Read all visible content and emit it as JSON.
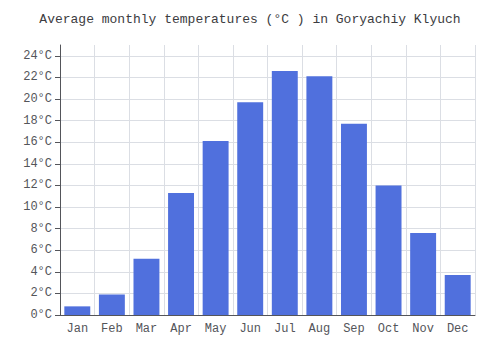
{
  "chart_data": {
    "type": "bar",
    "title": "Average monthly temperatures (°C ) in Goryachiy Klyuch",
    "categories": [
      "Jan",
      "Feb",
      "Mar",
      "Apr",
      "May",
      "Jun",
      "Jul",
      "Aug",
      "Sep",
      "Oct",
      "Nov",
      "Dec"
    ],
    "values": [
      0.8,
      1.9,
      5.2,
      11.3,
      16.1,
      19.7,
      22.6,
      22.1,
      17.7,
      12.0,
      7.6,
      3.7
    ],
    "ylim": [
      0,
      25
    ],
    "yticks": [
      {
        "value": 0,
        "label": "0°C"
      },
      {
        "value": 2,
        "label": "2°C"
      },
      {
        "value": 4,
        "label": "4°C"
      },
      {
        "value": 6,
        "label": "6°C"
      },
      {
        "value": 8,
        "label": "8°C"
      },
      {
        "value": 10,
        "label": "10°C"
      },
      {
        "value": 12,
        "label": "12°C"
      },
      {
        "value": 14,
        "label": "14°C"
      },
      {
        "value": 16,
        "label": "16°C"
      },
      {
        "value": 18,
        "label": "18°C"
      },
      {
        "value": 20,
        "label": "20°C"
      },
      {
        "value": 22,
        "label": "22°C"
      },
      {
        "value": 24,
        "label": "24°C"
      }
    ],
    "grid": true
  }
}
